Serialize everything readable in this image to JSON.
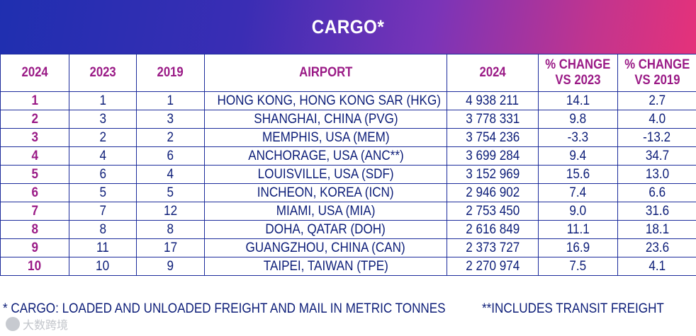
{
  "title": "CARGO*",
  "chart_data": {
    "type": "table",
    "columns": [
      "2024",
      "2023",
      "2019",
      "AIRPORT",
      "2024",
      "% CHANGE VS 2023",
      "% CHANGE VS 2019"
    ],
    "rows": [
      [
        "1",
        "1",
        "1",
        "HONG KONG, HONG KONG SAR (HKG)",
        "4 938 211",
        "14.1",
        "2.7"
      ],
      [
        "2",
        "3",
        "3",
        "SHANGHAI, CHINA (PVG)",
        "3 778 331",
        "9.8",
        "4.0"
      ],
      [
        "3",
        "2",
        "2",
        "MEMPHIS, USA (MEM)",
        "3 754 236",
        "-3.3",
        "-13.2"
      ],
      [
        "4",
        "4",
        "6",
        "ANCHORAGE, USA (ANC**)",
        "3 699 284",
        "9.4",
        "34.7"
      ],
      [
        "5",
        "6",
        "4",
        "LOUISVILLE, USA (SDF)",
        "3 152 969",
        "15.6",
        "13.0"
      ],
      [
        "6",
        "5",
        "5",
        "INCHEON, KOREA (ICN)",
        "2 946 902",
        "7.4",
        "6.6"
      ],
      [
        "7",
        "7",
        "12",
        "MIAMI, USA (MIA)",
        "2 753 450",
        "9.0",
        "31.6"
      ],
      [
        "8",
        "8",
        "8",
        "DOHA, QATAR (DOH)",
        "2 616 849",
        "11.1",
        "18.1"
      ],
      [
        "9",
        "11",
        "17",
        "GUANGZHOU, CHINA (CAN)",
        "2 373 727",
        "16.9",
        "23.6"
      ],
      [
        "10",
        "10",
        "9",
        "TAIPEI, TAIWAN (TPE)",
        "2 270 974",
        "7.5",
        "4.1"
      ]
    ]
  },
  "header_lines": [
    [
      "2024"
    ],
    [
      "2023"
    ],
    [
      "2019"
    ],
    [
      "AIRPORT"
    ],
    [
      "2024"
    ],
    [
      "% CHANGE",
      "VS 2023"
    ],
    [
      "% CHANGE",
      "VS 2019"
    ]
  ],
  "footnote": {
    "cargo_note": "* CARGO: LOADED AND UNLOADED FREIGHT AND MAIL IN METRIC TONNES",
    "transit_note": "**INCLUDES TRANSIT FREIGHT"
  },
  "watermark": {
    "text": "大数跨境"
  },
  "colors": {
    "header_text": "#9a1a86",
    "body_text": "#0c1d78",
    "border": "#1c2c9c",
    "banner_start": "#1f2fb0",
    "banner_end": "#e5327a"
  }
}
